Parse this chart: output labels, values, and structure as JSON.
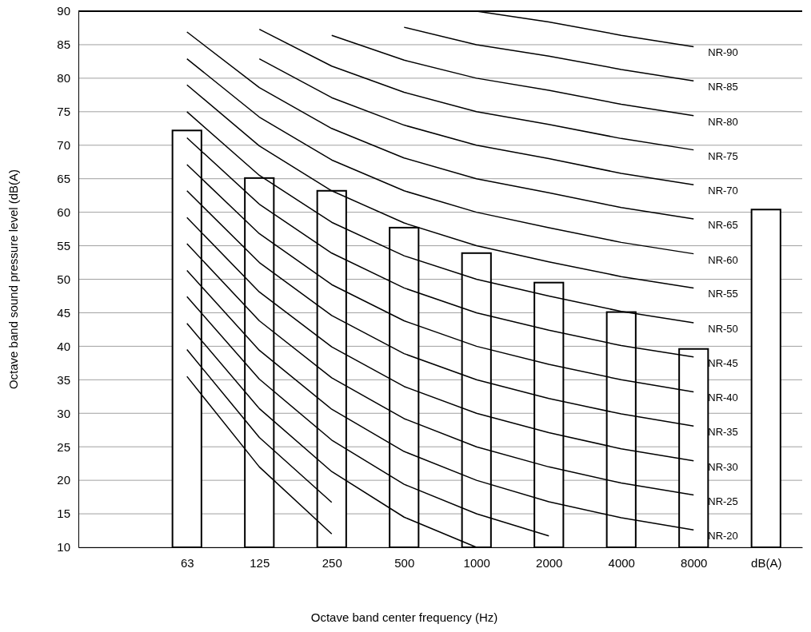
{
  "chart_data": {
    "type": "bar",
    "xlabel": "Octave band center frequency (Hz)",
    "ylabel": "Octave band sound pressure level (dB(A)",
    "categories": [
      null,
      "63",
      "125",
      "250",
      "500",
      "1000",
      "2000",
      "4000",
      "8000",
      "dB(A)"
    ],
    "ylim": [
      10,
      90
    ],
    "yticks": [
      10,
      15,
      20,
      25,
      30,
      35,
      40,
      45,
      50,
      55,
      60,
      65,
      70,
      75,
      80,
      85,
      90
    ],
    "grid": "y",
    "legend": false,
    "series": [
      {
        "color": "#ffffff",
        "values": [
          null,
          72.2,
          65.1,
          63.2,
          57.7,
          53.9,
          49.5,
          45.1,
          39.6,
          60.4
        ]
      },
      {
        "type": "line",
        "color": "#000000",
        "values": [
          null,
          35.5,
          22.0,
          12.0,
          null,
          null,
          null,
          null,
          null,
          null
        ]
      },
      {
        "type": "line",
        "color": "#000000",
        "values": [
          null,
          39.5,
          26.4,
          16.7,
          null,
          null,
          null,
          null,
          null,
          null
        ]
      },
      {
        "type": "line",
        "color": "#000000",
        "values": [
          null,
          43.4,
          30.7,
          21.3,
          14.5,
          10.0,
          null,
          null,
          null,
          null
        ]
      },
      {
        "type": "line",
        "color": "#000000",
        "values": [
          null,
          47.4,
          35.1,
          26.0,
          19.4,
          15.0,
          11.7,
          null,
          null,
          null
        ]
      },
      {
        "type": "line",
        "name": "NR-20",
        "color": "#000000",
        "values": [
          null,
          51.3,
          39.4,
          30.6,
          24.3,
          20.0,
          16.8,
          14.4,
          12.6,
          null
        ]
      },
      {
        "type": "line",
        "name": "NR-25",
        "color": "#000000",
        "values": [
          null,
          55.3,
          43.8,
          35.3,
          29.2,
          25.0,
          22.0,
          19.6,
          17.8,
          null
        ]
      },
      {
        "type": "line",
        "name": "NR-30",
        "color": "#000000",
        "values": [
          null,
          59.2,
          48.1,
          39.9,
          34.0,
          30.0,
          27.1,
          24.7,
          22.9,
          null
        ]
      },
      {
        "type": "line",
        "name": "NR-35",
        "color": "#000000",
        "values": [
          null,
          63.2,
          52.5,
          44.6,
          38.9,
          35.0,
          32.2,
          29.9,
          28.1,
          null
        ]
      },
      {
        "type": "line",
        "name": "NR-40",
        "color": "#000000",
        "values": [
          null,
          67.1,
          56.8,
          49.2,
          43.8,
          40.0,
          37.3,
          35.0,
          33.2,
          null
        ]
      },
      {
        "type": "line",
        "name": "NR-45",
        "color": "#000000",
        "values": [
          null,
          71.1,
          61.2,
          53.9,
          48.7,
          45.0,
          42.4,
          40.1,
          38.4,
          null
        ]
      },
      {
        "type": "line",
        "name": "NR-50",
        "color": "#000000",
        "values": [
          null,
          75.0,
          65.5,
          58.5,
          53.5,
          50.0,
          47.5,
          45.2,
          43.5,
          null
        ]
      },
      {
        "type": "line",
        "name": "NR-55",
        "color": "#000000",
        "values": [
          null,
          79.0,
          69.9,
          63.2,
          58.4,
          55.0,
          52.6,
          50.4,
          48.7,
          null
        ]
      },
      {
        "type": "line",
        "name": "NR-60",
        "color": "#000000",
        "values": [
          null,
          82.9,
          74.2,
          67.8,
          63.2,
          60.0,
          57.7,
          55.5,
          53.8,
          null
        ]
      },
      {
        "type": "line",
        "name": "NR-65",
        "color": "#000000",
        "values": [
          null,
          86.9,
          78.6,
          72.5,
          68.1,
          65.0,
          62.9,
          60.7,
          59.0,
          null
        ]
      },
      {
        "type": "line",
        "name": "NR-70",
        "color": "#000000",
        "values": [
          null,
          null,
          82.9,
          77.1,
          73.0,
          70.0,
          68.0,
          65.8,
          64.1,
          null
        ]
      },
      {
        "type": "line",
        "name": "NR-75",
        "color": "#000000",
        "values": [
          null,
          null,
          87.3,
          81.8,
          77.9,
          75.0,
          73.1,
          71.0,
          69.3,
          null
        ]
      },
      {
        "type": "line",
        "name": "NR-80",
        "color": "#000000",
        "values": [
          null,
          null,
          null,
          86.4,
          82.7,
          80.0,
          78.2,
          76.1,
          74.4,
          null
        ]
      },
      {
        "type": "line",
        "name": "NR-85",
        "color": "#000000",
        "values": [
          null,
          null,
          null,
          null,
          87.6,
          85.0,
          83.3,
          81.3,
          79.6,
          null
        ]
      },
      {
        "type": "line",
        "name": "NR-90",
        "color": "#000000",
        "values": [
          null,
          null,
          null,
          null,
          null,
          90.0,
          88.4,
          86.4,
          84.7,
          null
        ]
      }
    ]
  }
}
